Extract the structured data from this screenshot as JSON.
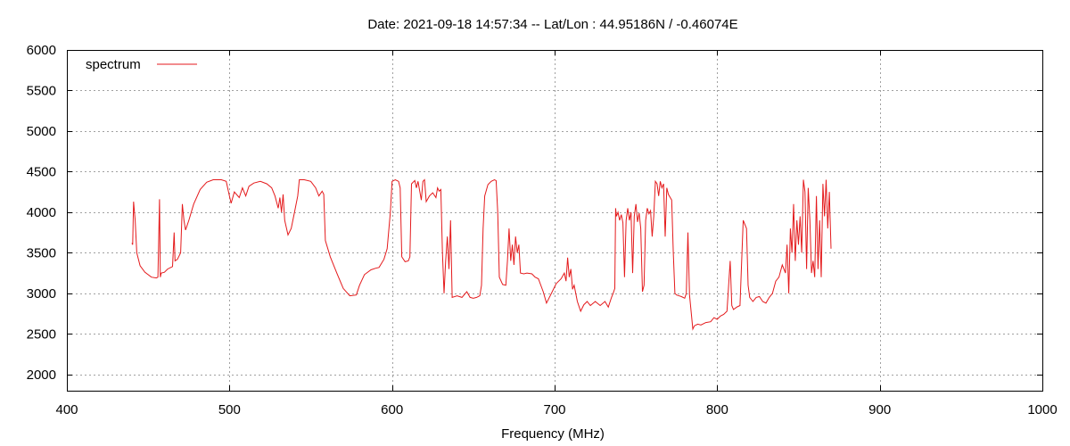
{
  "chart_data": {
    "type": "line",
    "title": "Date: 2021-09-18 14:57:34  --  Lat/Lon : 44.95186N / -0.46074E",
    "xlabel": "Frequency (MHz)",
    "ylabel": "",
    "xlim": [
      400,
      1000
    ],
    "ylim": [
      1800,
      6000
    ],
    "xticks": [
      400,
      500,
      600,
      700,
      800,
      900,
      1000
    ],
    "yticks": [
      2000,
      2500,
      3000,
      3500,
      4000,
      4500,
      5000,
      5500,
      6000
    ],
    "grid": true,
    "legend": "top-left",
    "series": [
      {
        "name": "spectrum",
        "color": "#e41a1c",
        "points": [
          [
            440,
            3620
          ],
          [
            440.5,
            3600
          ],
          [
            441,
            4130
          ],
          [
            442,
            3900
          ],
          [
            443,
            3500
          ],
          [
            445,
            3340
          ],
          [
            448,
            3260
          ],
          [
            452,
            3200
          ],
          [
            455,
            3190
          ],
          [
            456,
            3200
          ],
          [
            457,
            4160
          ],
          [
            457.5,
            3200
          ],
          [
            458,
            3250
          ],
          [
            460,
            3260
          ],
          [
            462,
            3300
          ],
          [
            465,
            3330
          ],
          [
            466,
            3750
          ],
          [
            466.5,
            3400
          ],
          [
            468,
            3420
          ],
          [
            470,
            3500
          ],
          [
            471,
            4100
          ],
          [
            472,
            3900
          ],
          [
            473,
            3780
          ],
          [
            475,
            3900
          ],
          [
            478,
            4100
          ],
          [
            482,
            4280
          ],
          [
            486,
            4370
          ],
          [
            490,
            4400
          ],
          [
            495,
            4400
          ],
          [
            498,
            4380
          ],
          [
            500,
            4200
          ],
          [
            501,
            4110
          ],
          [
            503,
            4250
          ],
          [
            506,
            4180
          ],
          [
            508,
            4300
          ],
          [
            510,
            4200
          ],
          [
            512,
            4320
          ],
          [
            515,
            4360
          ],
          [
            519,
            4380
          ],
          [
            523,
            4350
          ],
          [
            526,
            4300
          ],
          [
            528,
            4200
          ],
          [
            530,
            4050
          ],
          [
            531,
            4180
          ],
          [
            532,
            4000
          ],
          [
            533,
            4220
          ],
          [
            534,
            3900
          ],
          [
            536,
            3720
          ],
          [
            538,
            3800
          ],
          [
            540,
            4000
          ],
          [
            542,
            4200
          ],
          [
            543,
            4400
          ],
          [
            546,
            4400
          ],
          [
            550,
            4380
          ],
          [
            553,
            4300
          ],
          [
            555,
            4200
          ],
          [
            557,
            4260
          ],
          [
            558,
            4220
          ],
          [
            559,
            3650
          ],
          [
            562,
            3450
          ],
          [
            566,
            3250
          ],
          [
            570,
            3060
          ],
          [
            574,
            2970
          ],
          [
            578,
            2980
          ],
          [
            580,
            3100
          ],
          [
            583,
            3230
          ],
          [
            587,
            3290
          ],
          [
            590,
            3310
          ],
          [
            592,
            3320
          ],
          [
            595,
            3420
          ],
          [
            597,
            3550
          ],
          [
            599,
            4000
          ],
          [
            600,
            4380
          ],
          [
            602,
            4400
          ],
          [
            604,
            4380
          ],
          [
            605,
            4300
          ],
          [
            606,
            3450
          ],
          [
            608,
            3390
          ],
          [
            610,
            3400
          ],
          [
            611,
            3450
          ],
          [
            612,
            4350
          ],
          [
            614,
            4390
          ],
          [
            615,
            4300
          ],
          [
            616,
            4380
          ],
          [
            618,
            4150
          ],
          [
            619,
            4380
          ],
          [
            620,
            4400
          ],
          [
            621,
            4130
          ],
          [
            623,
            4200
          ],
          [
            625,
            4240
          ],
          [
            627,
            4180
          ],
          [
            628,
            4300
          ],
          [
            629,
            4260
          ],
          [
            630,
            4280
          ],
          [
            631,
            3500
          ],
          [
            632,
            3000
          ],
          [
            633,
            3400
          ],
          [
            634,
            3700
          ],
          [
            635,
            3300
          ],
          [
            636,
            3900
          ],
          [
            637,
            2950
          ],
          [
            640,
            2970
          ],
          [
            643,
            2950
          ],
          [
            646,
            3020
          ],
          [
            648,
            2950
          ],
          [
            650,
            2940
          ],
          [
            652,
            2950
          ],
          [
            654,
            2970
          ],
          [
            655,
            3100
          ],
          [
            656,
            3800
          ],
          [
            657,
            4200
          ],
          [
            659,
            4340
          ],
          [
            661,
            4380
          ],
          [
            663,
            4400
          ],
          [
            664,
            4390
          ],
          [
            665,
            4000
          ],
          [
            666,
            3200
          ],
          [
            668,
            3110
          ],
          [
            670,
            3100
          ],
          [
            671,
            3400
          ],
          [
            672,
            3800
          ],
          [
            673,
            3400
          ],
          [
            674,
            3600
          ],
          [
            675,
            3350
          ],
          [
            676,
            3700
          ],
          [
            677,
            3500
          ],
          [
            678,
            3600
          ],
          [
            679,
            3250
          ],
          [
            681,
            3240
          ],
          [
            683,
            3250
          ],
          [
            686,
            3240
          ],
          [
            688,
            3200
          ],
          [
            690,
            3180
          ],
          [
            693,
            3020
          ],
          [
            695,
            2880
          ],
          [
            698,
            3000
          ],
          [
            701,
            3120
          ],
          [
            704,
            3180
          ],
          [
            706,
            3250
          ],
          [
            707,
            3150
          ],
          [
            708,
            3440
          ],
          [
            709,
            3200
          ],
          [
            710,
            3300
          ],
          [
            711,
            3050
          ],
          [
            712,
            3100
          ],
          [
            714,
            2900
          ],
          [
            716,
            2780
          ],
          [
            718,
            2860
          ],
          [
            720,
            2900
          ],
          [
            722,
            2850
          ],
          [
            725,
            2900
          ],
          [
            728,
            2850
          ],
          [
            731,
            2900
          ],
          [
            733,
            2830
          ],
          [
            735,
            2950
          ],
          [
            736,
            3000
          ],
          [
            737,
            3060
          ],
          [
            737.5,
            4050
          ],
          [
            738,
            3950
          ],
          [
            739,
            4000
          ],
          [
            740,
            3900
          ],
          [
            741,
            3970
          ],
          [
            742,
            3870
          ],
          [
            743,
            3200
          ],
          [
            744,
            3900
          ],
          [
            745,
            4050
          ],
          [
            746,
            3900
          ],
          [
            747,
            4000
          ],
          [
            748,
            3250
          ],
          [
            749,
            3950
          ],
          [
            750,
            4100
          ],
          [
            751,
            3880
          ],
          [
            752,
            3990
          ],
          [
            753,
            3800
          ],
          [
            754,
            3020
          ],
          [
            755,
            3100
          ],
          [
            756,
            3900
          ],
          [
            757,
            4050
          ],
          [
            758,
            3980
          ],
          [
            759,
            4020
          ],
          [
            760,
            3700
          ],
          [
            761,
            3950
          ],
          [
            762,
            4380
          ],
          [
            763,
            4350
          ],
          [
            764,
            4200
          ],
          [
            765,
            4380
          ],
          [
            766,
            4300
          ],
          [
            767,
            4350
          ],
          [
            768,
            3700
          ],
          [
            769,
            4300
          ],
          [
            770,
            4220
          ],
          [
            772,
            4150
          ],
          [
            773,
            3500
          ],
          [
            774,
            3000
          ],
          [
            775,
            2980
          ],
          [
            778,
            2960
          ],
          [
            780,
            2940
          ],
          [
            781,
            3000
          ],
          [
            782,
            3750
          ],
          [
            783,
            2980
          ],
          [
            785,
            2560
          ],
          [
            786,
            2600
          ],
          [
            788,
            2620
          ],
          [
            790,
            2610
          ],
          [
            793,
            2640
          ],
          [
            796,
            2650
          ],
          [
            798,
            2700
          ],
          [
            800,
            2680
          ],
          [
            802,
            2720
          ],
          [
            804,
            2740
          ],
          [
            806,
            2780
          ],
          [
            808,
            3400
          ],
          [
            809,
            2850
          ],
          [
            810,
            2800
          ],
          [
            812,
            2830
          ],
          [
            814,
            2850
          ],
          [
            816,
            3900
          ],
          [
            818,
            3800
          ],
          [
            819,
            3100
          ],
          [
            820,
            2950
          ],
          [
            822,
            2900
          ],
          [
            824,
            2950
          ],
          [
            826,
            2960
          ],
          [
            828,
            2900
          ],
          [
            830,
            2880
          ],
          [
            832,
            2950
          ],
          [
            834,
            3000
          ],
          [
            836,
            3150
          ],
          [
            838,
            3200
          ],
          [
            840,
            3350
          ],
          [
            842,
            3250
          ],
          [
            843,
            3600
          ],
          [
            844,
            3000
          ],
          [
            845,
            3800
          ],
          [
            846,
            3500
          ],
          [
            847,
            4100
          ],
          [
            848,
            3400
          ],
          [
            849,
            3900
          ],
          [
            850,
            3600
          ],
          [
            851,
            3950
          ],
          [
            852,
            3500
          ],
          [
            853,
            4400
          ],
          [
            854,
            4250
          ],
          [
            855,
            3300
          ],
          [
            856,
            4300
          ],
          [
            857,
            3900
          ],
          [
            858,
            3250
          ],
          [
            859,
            3400
          ],
          [
            860,
            3200
          ],
          [
            861,
            4200
          ],
          [
            862,
            3300
          ],
          [
            863,
            3900
          ],
          [
            864,
            3200
          ],
          [
            865,
            4350
          ],
          [
            866,
            3950
          ],
          [
            867,
            4400
          ],
          [
            868,
            3800
          ],
          [
            869,
            4250
          ],
          [
            870,
            3550
          ]
        ]
      }
    ]
  }
}
